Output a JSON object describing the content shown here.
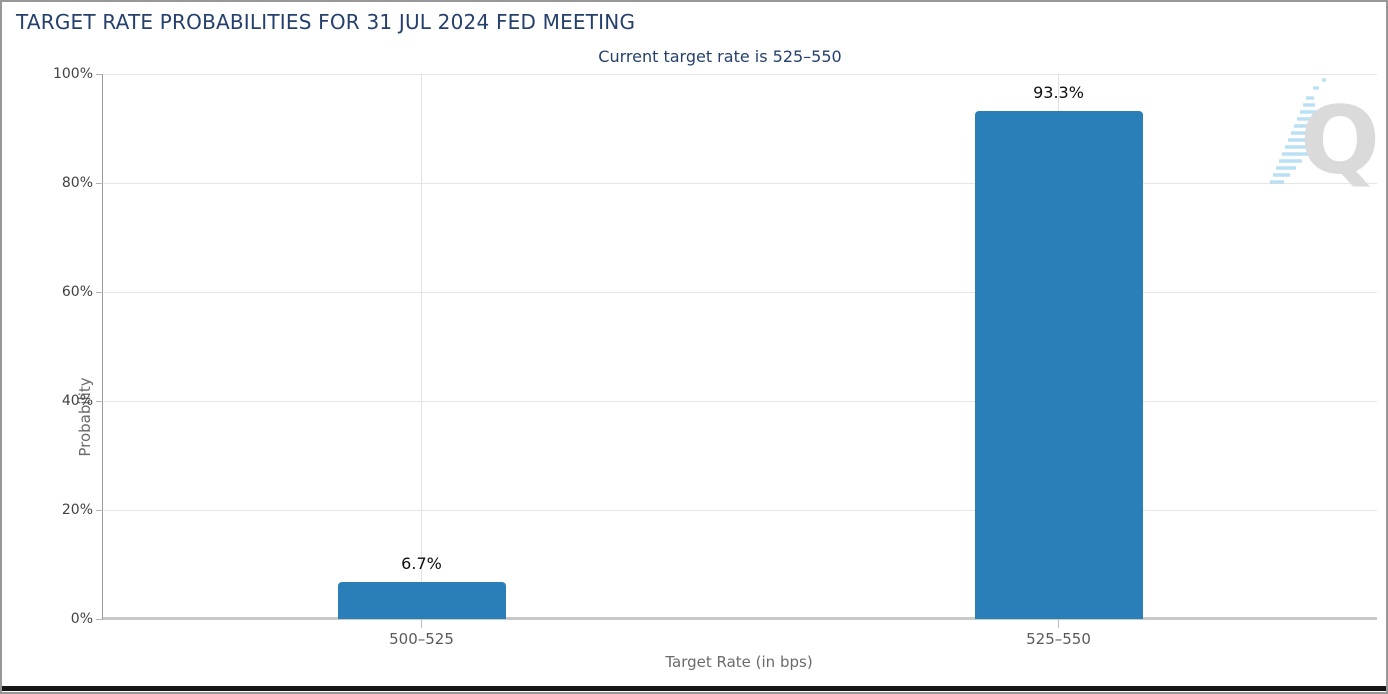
{
  "header": {
    "title": "TARGET RATE PROBABILITIES FOR 31 JUL 2024 FED MEETING",
    "subtitle": "Current target rate is 525–550"
  },
  "axes": {
    "y_title": "Probability",
    "x_title": "Target Rate (in bps)"
  },
  "watermark": {
    "letter": "Q",
    "name": "quikstrike-logo"
  },
  "colors": {
    "bar": "#2b7fb8",
    "title_navy": "#25406d",
    "gridline": "#e6e6e6",
    "axis_line": "#9a9a9a",
    "baseline": "#c9c9c9",
    "watermark_gray": "#d9d9d9",
    "watermark_blue": "#a9d9f0"
  },
  "chart_data": {
    "type": "bar",
    "title": "TARGET RATE PROBABILITIES FOR 31 JUL 2024 FED MEETING",
    "subtitle": "Current target rate is 525–550",
    "categories": [
      "500–525",
      "525–550"
    ],
    "values": [
      6.7,
      93.3
    ],
    "value_labels": [
      "6.7%",
      "93.3%"
    ],
    "xlabel": "Target Rate (in bps)",
    "ylabel": "Probability",
    "ylim": [
      0,
      100
    ],
    "ytick_labels": [
      "0%",
      "20%",
      "40%",
      "60%",
      "80%",
      "100%"
    ],
    "ytick_values": [
      0,
      20,
      40,
      60,
      80,
      100
    ],
    "grid": true,
    "legend": false,
    "bar_color": "#2b7fb8"
  }
}
